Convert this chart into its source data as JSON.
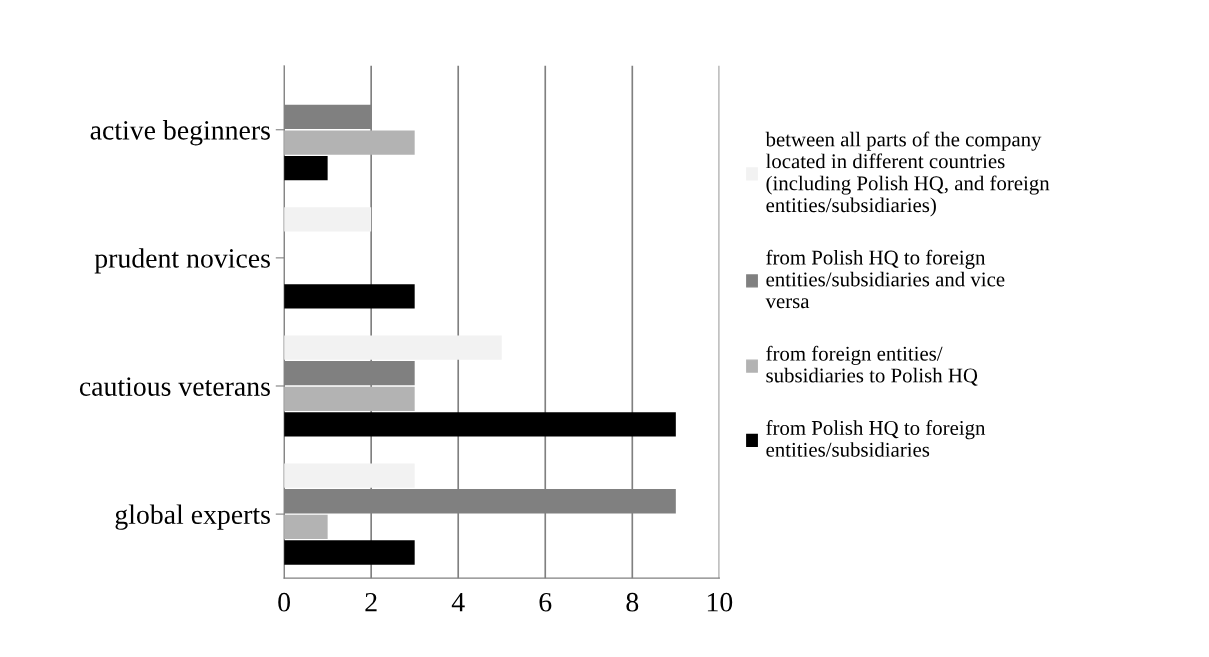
{
  "chart_data": {
    "type": "bar",
    "orientation": "horizontal",
    "categories": [
      "active beginners",
      "prudent novices",
      "cautious veterans",
      "global experts"
    ],
    "series": [
      {
        "name": "between all parts of the company located in different countries (including Polish HQ, and foreign entities/subsidiaries)",
        "color": "#f2f2f2",
        "values": [
          0,
          2,
          5,
          3
        ]
      },
      {
        "name": "from Polish HQ to foreign entities/subsidiaries and vice versa",
        "color": "#808080",
        "values": [
          2,
          0,
          3,
          9
        ]
      },
      {
        "name": "from foreign entities/ subsidiaries to Polish HQ",
        "color": "#b3b3b3",
        "values": [
          3,
          0,
          3,
          1
        ]
      },
      {
        "name": "from Polish HQ to foreign entities/subsidiaries",
        "color": "#000000",
        "values": [
          1,
          3,
          9,
          3
        ]
      }
    ],
    "xlim": [
      0,
      10
    ],
    "xticks": [
      0,
      2,
      4,
      6,
      8,
      10
    ],
    "grid": "x",
    "legend": "right"
  }
}
